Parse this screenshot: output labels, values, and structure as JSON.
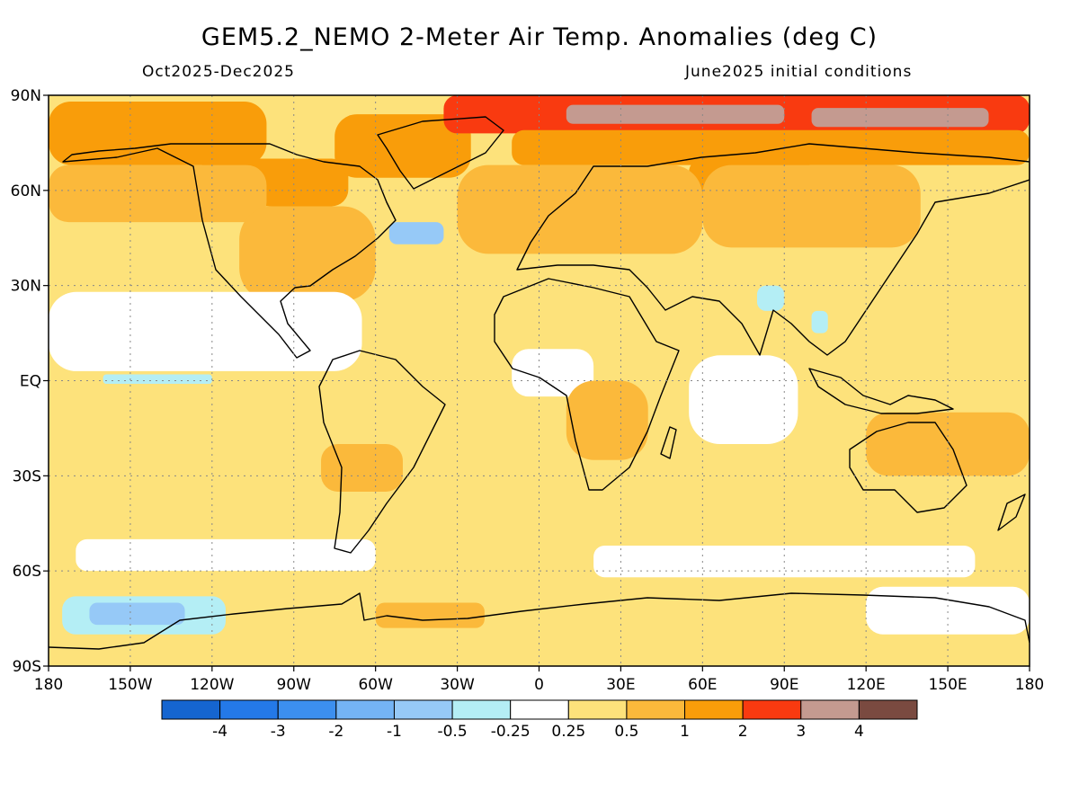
{
  "title": "GEM5.2_NEMO 2-Meter Air Temp. Anomalies (deg C)",
  "subtitle_left": "Oct2025-Dec2025",
  "subtitle_right": "June2025 initial conditions",
  "map": {
    "projection": "equirectangular",
    "lon_range": [
      -180,
      180
    ],
    "lat_range": [
      -90,
      90
    ],
    "grid": "dotted",
    "lat_ticks": [
      {
        "value": 90,
        "label": "90N"
      },
      {
        "value": 60,
        "label": "60N"
      },
      {
        "value": 30,
        "label": "30N"
      },
      {
        "value": 0,
        "label": "EQ"
      },
      {
        "value": -30,
        "label": "30S"
      },
      {
        "value": -60,
        "label": "60S"
      },
      {
        "value": -90,
        "label": "90S"
      }
    ],
    "lon_ticks": [
      {
        "value": -180,
        "label": "180"
      },
      {
        "value": -150,
        "label": "150W"
      },
      {
        "value": -120,
        "label": "120W"
      },
      {
        "value": -90,
        "label": "90W"
      },
      {
        "value": -60,
        "label": "60W"
      },
      {
        "value": -30,
        "label": "30W"
      },
      {
        "value": 0,
        "label": "0"
      },
      {
        "value": 30,
        "label": "30E"
      },
      {
        "value": 60,
        "label": "60E"
      },
      {
        "value": 90,
        "label": "90E"
      },
      {
        "value": 120,
        "label": "120E"
      },
      {
        "value": 150,
        "label": "150E"
      },
      {
        "value": 180,
        "label": "180"
      }
    ]
  },
  "colorbar": {
    "colors": [
      "#1565d0",
      "#2479e8",
      "#3c8fef",
      "#74b4f5",
      "#96c9f7",
      "#b4eef5",
      "#ffffff",
      "#fde27b",
      "#fbb93b",
      "#f99d0a",
      "#f93a10",
      "#c49a90",
      "#7a4a40"
    ],
    "labels": [
      "-4",
      "-3",
      "-2",
      "-1",
      "-0.5",
      "-0.25",
      "0.25",
      "0.5",
      "1",
      "2",
      "3",
      "4"
    ]
  },
  "anomaly_regions": [
    {
      "level": 3,
      "lon": [
        -180,
        -100
      ],
      "lat": [
        68,
        88
      ]
    },
    {
      "level": 3,
      "lon": [
        -125,
        -70
      ],
      "lat": [
        55,
        70
      ]
    },
    {
      "level": 3,
      "lon": [
        -75,
        -25
      ],
      "lat": [
        64,
        84
      ]
    },
    {
      "level": 4,
      "lon": [
        -35,
        180
      ],
      "lat": [
        78,
        90
      ]
    },
    {
      "level": 5,
      "lon": [
        10,
        90
      ],
      "lat": [
        81,
        87
      ]
    },
    {
      "level": 5,
      "lon": [
        100,
        165
      ],
      "lat": [
        80,
        86
      ]
    },
    {
      "level": 3,
      "lon": [
        -10,
        180
      ],
      "lat": [
        68,
        79
      ]
    },
    {
      "level": 3,
      "lon": [
        55,
        100
      ],
      "lat": [
        58,
        70
      ]
    },
    {
      "level": 2,
      "lon": [
        -180,
        -100
      ],
      "lat": [
        50,
        68
      ]
    },
    {
      "level": 2,
      "lon": [
        -110,
        -60
      ],
      "lat": [
        25,
        55
      ]
    },
    {
      "level": 2,
      "lon": [
        -30,
        60
      ],
      "lat": [
        40,
        68
      ]
    },
    {
      "level": 2,
      "lon": [
        60,
        140
      ],
      "lat": [
        42,
        68
      ]
    },
    {
      "level": -2,
      "lon": [
        -55,
        -35
      ],
      "lat": [
        43,
        50
      ]
    },
    {
      "level": -1,
      "lon": [
        80,
        90
      ],
      "lat": [
        22,
        30
      ]
    },
    {
      "level": -1,
      "lon": [
        100,
        106
      ],
      "lat": [
        15,
        22
      ]
    },
    {
      "level": 0,
      "lon": [
        -180,
        -65
      ],
      "lat": [
        3,
        28
      ]
    },
    {
      "level": 0,
      "lon": [
        -10,
        20
      ],
      "lat": [
        -5,
        10
      ]
    },
    {
      "level": 0,
      "lon": [
        55,
        95
      ],
      "lat": [
        -20,
        8
      ]
    },
    {
      "level": -1,
      "lon": [
        -160,
        -120
      ],
      "lat": [
        -1,
        2
      ]
    },
    {
      "level": 2,
      "lon": [
        -80,
        -50
      ],
      "lat": [
        -35,
        -20
      ]
    },
    {
      "level": 2,
      "lon": [
        10,
        40
      ],
      "lat": [
        -25,
        0
      ]
    },
    {
      "level": 2,
      "lon": [
        120,
        180
      ],
      "lat": [
        -30,
        -10
      ]
    },
    {
      "level": 0,
      "lon": [
        -170,
        -60
      ],
      "lat": [
        -60,
        -50
      ]
    },
    {
      "level": 0,
      "lon": [
        20,
        160
      ],
      "lat": [
        -62,
        -52
      ]
    },
    {
      "level": -1,
      "lon": [
        -175,
        -115
      ],
      "lat": [
        -80,
        -68
      ]
    },
    {
      "level": -2,
      "lon": [
        -165,
        -130
      ],
      "lat": [
        -77,
        -70
      ]
    },
    {
      "level": 0,
      "lon": [
        120,
        180
      ],
      "lat": [
        -80,
        -65
      ]
    },
    {
      "level": 2,
      "lon": [
        -60,
        -20
      ],
      "lat": [
        -78,
        -70
      ]
    }
  ]
}
